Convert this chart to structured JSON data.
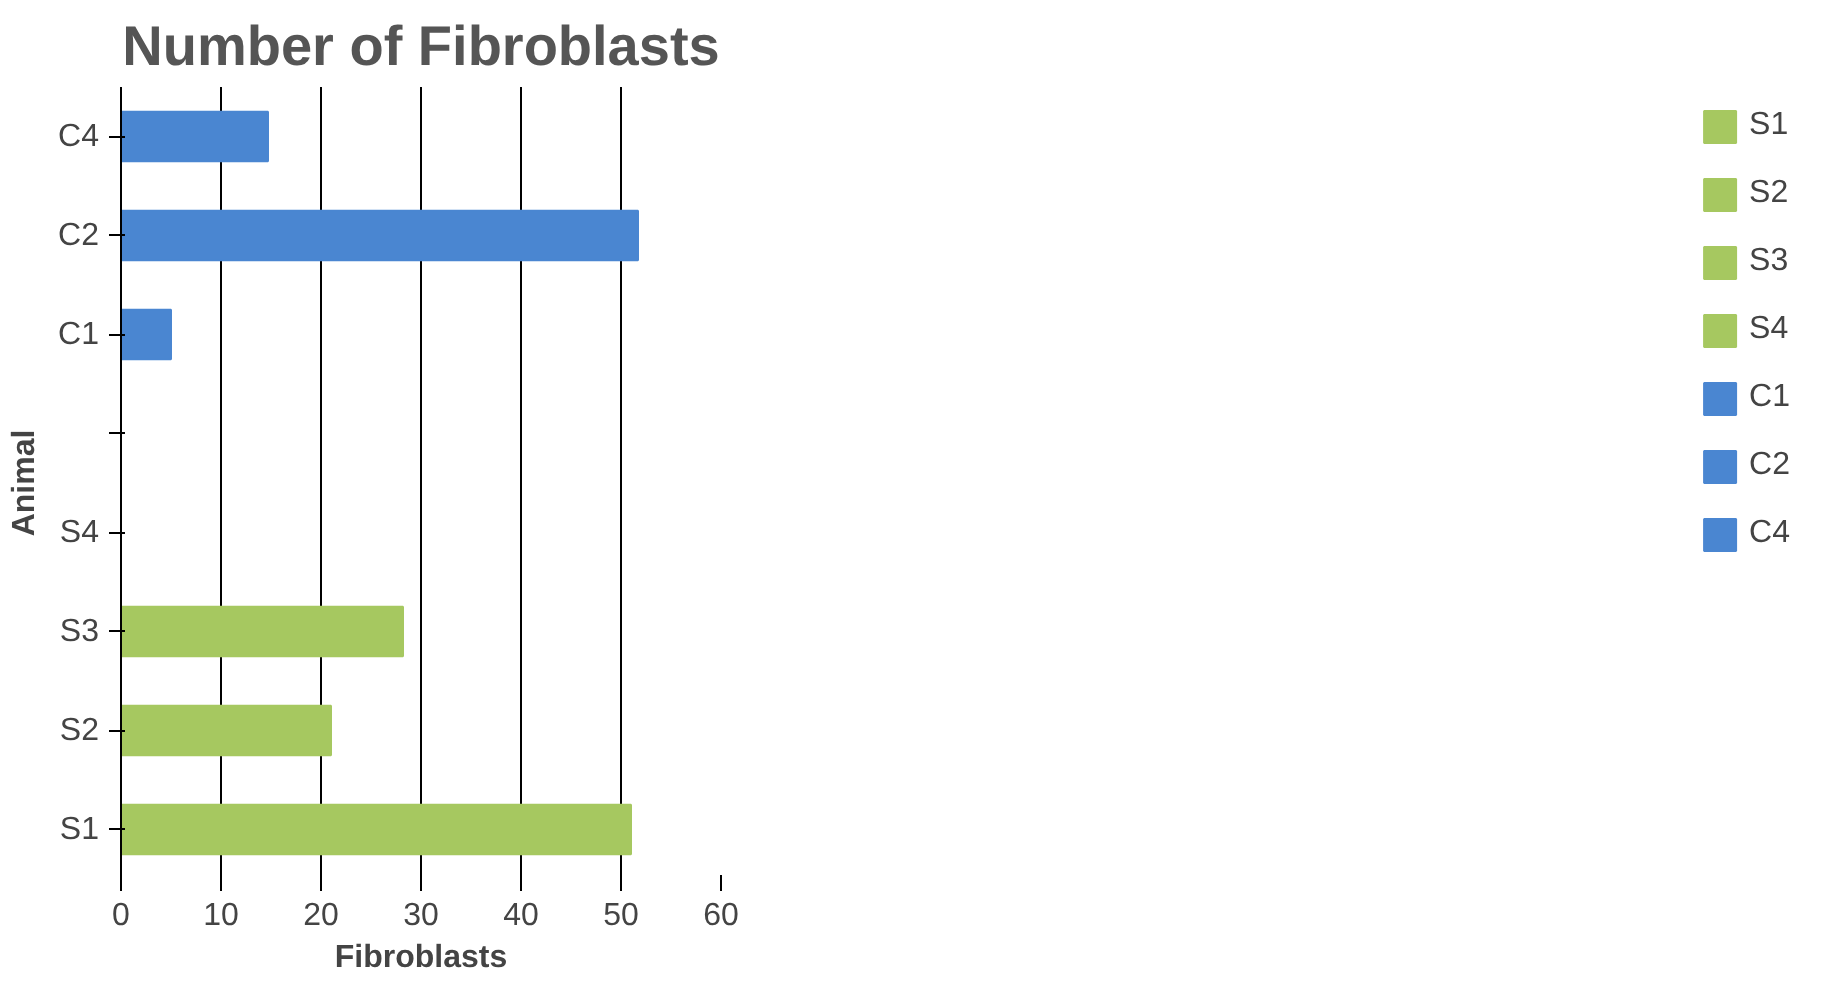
{
  "chart_data": {
    "type": "bar",
    "orientation": "horizontal",
    "title": "Number of Fibroblasts",
    "xlabel": "Fibroblasts",
    "ylabel": "Animal",
    "categories": [
      "C4",
      "C2",
      "C1",
      null,
      "S4",
      "S3",
      "S2",
      "S1"
    ],
    "series": [
      {
        "name": "S1",
        "color": "#a6c860",
        "values": [
          null,
          null,
          null,
          null,
          null,
          null,
          null,
          51
        ]
      },
      {
        "name": "S2",
        "color": "#a6c860",
        "values": [
          null,
          null,
          null,
          null,
          null,
          null,
          21,
          null
        ]
      },
      {
        "name": "S3",
        "color": "#a6c860",
        "values": [
          null,
          null,
          null,
          null,
          null,
          28.2,
          null,
          null
        ]
      },
      {
        "name": "S4",
        "color": "#a6c860",
        "values": [
          null,
          null,
          null,
          null,
          0,
          null,
          null,
          null
        ]
      },
      {
        "name": "C1",
        "color": "#4a86d1",
        "values": [
          null,
          null,
          5,
          null,
          null,
          null,
          null,
          null
        ]
      },
      {
        "name": "C2",
        "color": "#4a86d1",
        "values": [
          null,
          51.7,
          null,
          null,
          null,
          null,
          null,
          null
        ]
      },
      {
        "name": "C4",
        "color": "#4a86d1",
        "values": [
          14.7,
          null,
          null,
          null,
          null,
          null,
          null,
          null
        ]
      }
    ],
    "xlim": [
      0,
      60
    ],
    "xticks": [
      0,
      10,
      20,
      30,
      40,
      50,
      60
    ],
    "grid": "x",
    "legend": "right"
  }
}
